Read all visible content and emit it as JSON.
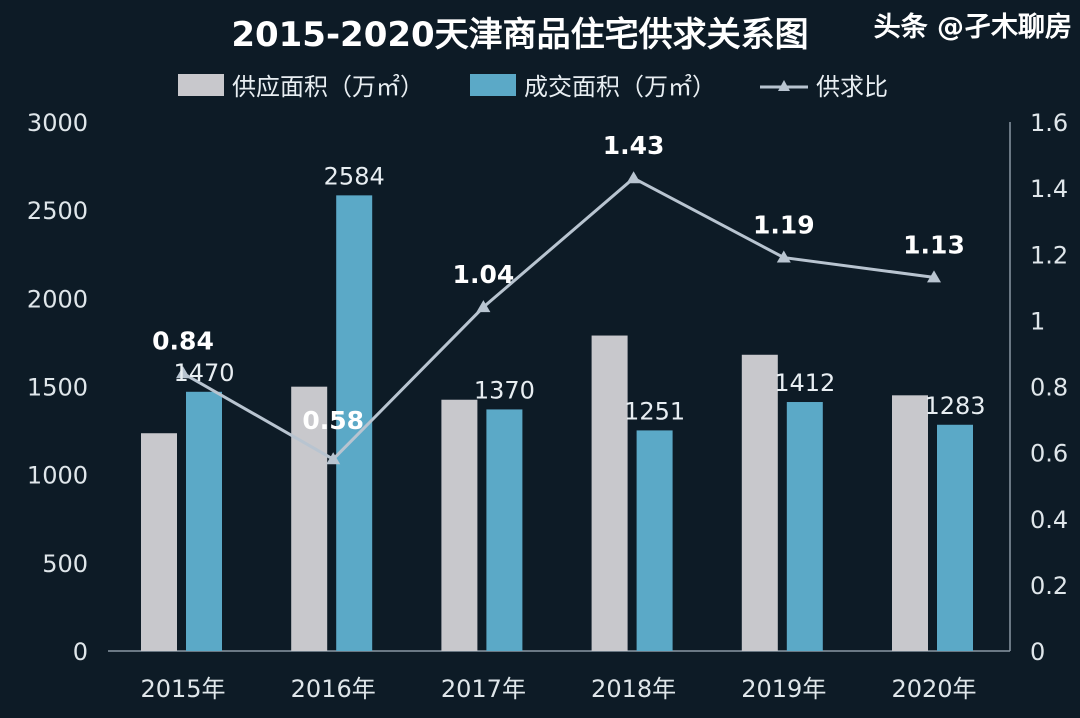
{
  "chart_data": {
    "type": "bar",
    "title": "2015-2020天津商品住宅供求关系图",
    "categories": [
      "2015年",
      "2016年",
      "2017年",
      "2018年",
      "2019年",
      "2020年"
    ],
    "series": [
      {
        "name": "供应面积（万㎡）",
        "type": "bar",
        "axis": "left",
        "color": "#c8c8cc",
        "values": [
          1235,
          1499,
          1425,
          1789,
          1680,
          1450
        ]
      },
      {
        "name": "成交面积（万㎡）",
        "type": "bar",
        "axis": "left",
        "color": "#5ba9c7",
        "values": [
          1470,
          2584,
          1370,
          1251,
          1412,
          1283
        ],
        "labels": [
          "1470",
          "2584",
          "1370",
          "1251",
          "1412",
          "1283"
        ]
      },
      {
        "name": "供求比",
        "type": "line",
        "axis": "right",
        "color": "#b8c4d0",
        "values": [
          0.84,
          0.58,
          1.04,
          1.43,
          1.19,
          1.13
        ],
        "labels": [
          "0.84",
          "0.58",
          "1.04",
          "1.43",
          "1.19",
          "1.13"
        ]
      }
    ],
    "y_left": {
      "range": [
        0,
        3000
      ],
      "ticks": [
        "0",
        "500",
        "1000",
        "1500",
        "2000",
        "2500",
        "3000"
      ]
    },
    "y_right": {
      "range": [
        0,
        1.6
      ],
      "ticks": [
        "0",
        "0.2",
        "0.4",
        "0.6",
        "0.8",
        "1",
        "1.2",
        "1.4",
        "1.6"
      ]
    },
    "grid": false,
    "legend_position": "top"
  },
  "watermark": "头条 @孑木聊房"
}
